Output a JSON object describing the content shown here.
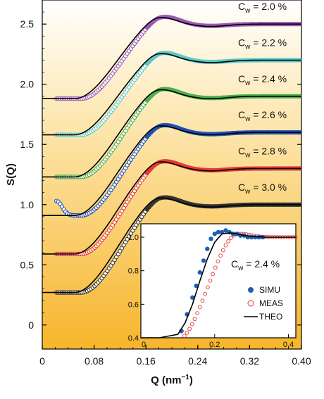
{
  "chart_data": {
    "main": {
      "type": "scatter",
      "xlabel": "Q (nm",
      "xlabel_sup": "−1",
      "xlabel_end": ")",
      "ylabel": "S(Q)",
      "xlim": [
        0,
        0.4
      ],
      "ylim": [
        -0.2,
        2.7
      ],
      "xticks": [
        "0",
        "0.08",
        "0.16",
        "0.24",
        "0.32",
        "0.40"
      ],
      "xtick_values": [
        0,
        0.08,
        0.16,
        0.24,
        0.32,
        0.4
      ],
      "yticks": [
        "0",
        "0.5",
        "1.0",
        "1.5",
        "2.0",
        "2.5"
      ],
      "ytick_values": [
        0,
        0.5,
        1.0,
        1.5,
        2.0,
        2.5
      ],
      "series": [
        {
          "label_prefix": "C",
          "label_sub": "w",
          "label_value": " = 2.0 %",
          "color": "#9b59b6",
          "offset": 1.5,
          "x_start": 0.022,
          "theory_low": 0.38,
          "dip": 0
        },
        {
          "label_prefix": "C",
          "label_sub": "w",
          "label_value": " = 2.2 %",
          "color": "#5ec8c8",
          "offset": 1.2,
          "x_start": 0.022,
          "theory_low": 0.38,
          "dip": 0
        },
        {
          "label_prefix": "C",
          "label_sub": "w",
          "label_value": " = 2.4 %",
          "color": "#4caf50",
          "offset": 0.9,
          "x_start": 0.022,
          "theory_low": 0.33,
          "dip": 0
        },
        {
          "label_prefix": "C",
          "label_sub": "w",
          "label_value": " = 2.6 %",
          "color": "#1f4fb4",
          "offset": 0.6,
          "x_start": 0.022,
          "theory_low": 0.31,
          "dip": 0.12
        },
        {
          "label_prefix": "C",
          "label_sub": "w",
          "label_value": " = 2.8 %",
          "color": "#e53935",
          "offset": 0.3,
          "x_start": 0.022,
          "theory_low": 0.29,
          "dip": 0
        },
        {
          "label_prefix": "C",
          "label_sub": "w",
          "label_value": " = 3.0 %",
          "color": "#333333",
          "offset": 0.0,
          "x_start": 0.022,
          "theory_low": 0.27,
          "dip": 0
        }
      ]
    },
    "inset": {
      "type": "scatter",
      "xlim": [
        0,
        0.42
      ],
      "ylim": [
        0.4,
        1.08
      ],
      "xticks": [
        "0",
        "0.2",
        "0.4"
      ],
      "xtick_values": [
        0,
        0.2,
        0.4
      ],
      "yticks": [
        "0.4",
        "0.6",
        "0.8",
        "1.0"
      ],
      "ytick_values": [
        0.4,
        0.6,
        0.8,
        1.0
      ],
      "label_prefix": "C",
      "label_sub": "w",
      "label_value": " = 2.4 %",
      "legend": [
        "SIMU",
        "MEAS",
        "THEO"
      ],
      "legend_position": "bottom-right",
      "simu": {
        "x": [
          0.11,
          0.125,
          0.14,
          0.15,
          0.16,
          0.17,
          0.18,
          0.19,
          0.2,
          0.21,
          0.22,
          0.23,
          0.24,
          0.25,
          0.26,
          0.27,
          0.28,
          0.29,
          0.3,
          0.31,
          0.32,
          0.33
        ],
        "y": [
          0.44,
          0.54,
          0.64,
          0.71,
          0.79,
          0.86,
          0.93,
          0.99,
          1.02,
          1.03,
          1.03,
          1.04,
          1.03,
          1.02,
          1.02,
          1.01,
          1.01,
          1.0,
          1.0,
          1.0,
          1.0,
          1.0
        ]
      },
      "theo": {
        "x": [
          0.0,
          0.05,
          0.1,
          0.12,
          0.14,
          0.16,
          0.18,
          0.2,
          0.22,
          0.24,
          0.26,
          0.28,
          0.3,
          0.34,
          0.38,
          0.42
        ],
        "y": [
          0.38,
          0.39,
          0.42,
          0.49,
          0.6,
          0.74,
          0.87,
          0.97,
          1.02,
          1.025,
          1.02,
          1.01,
          1.005,
          1.0,
          1.0,
          1.0
        ]
      }
    }
  }
}
